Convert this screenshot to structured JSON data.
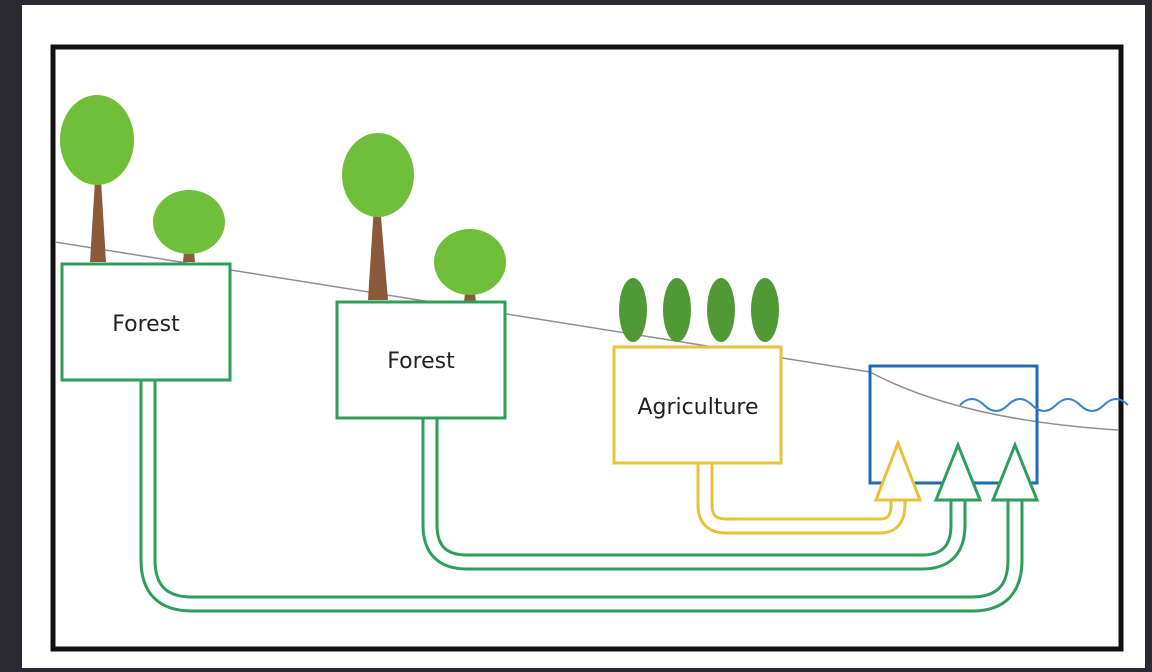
{
  "nodes": [
    {
      "label": "Forest"
    },
    {
      "label": "Forest"
    },
    {
      "label": "Agriculture"
    }
  ]
}
